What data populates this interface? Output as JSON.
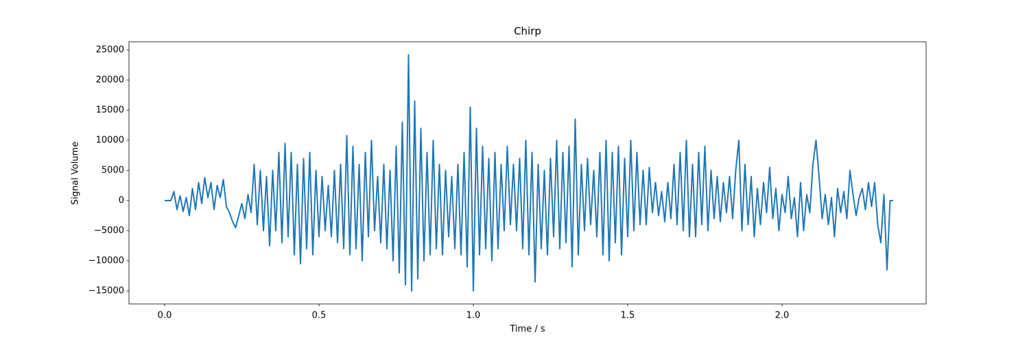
{
  "chart_data": {
    "type": "line",
    "title": "Chirp",
    "x_label": "Time / s",
    "y_label": "Signal Volume",
    "color": "#1f77b4",
    "xlim": [
      -0.1156,
      2.4667
    ],
    "ylim": [
      -17160,
      26360
    ],
    "xticks": [
      {
        "value": 0,
        "label": "0.0"
      },
      0.5,
      {
        "value": 1,
        "label": "1.0"
      },
      1.5,
      {
        "value": 2,
        "label": "2.0"
      }
    ],
    "yticks": [
      {
        "value": -15000,
        "label": "−15000"
      },
      {
        "value": -10000,
        "label": "−10000"
      },
      {
        "value": -5000,
        "label": "−5000"
      },
      0,
      5000,
      10000,
      15000,
      20000,
      25000
    ],
    "x": [
      0,
      0.01,
      0.02,
      0.03,
      0.04,
      0.05,
      0.06,
      0.07,
      0.08,
      0.09,
      0.1,
      0.11,
      0.12,
      0.13,
      0.14,
      0.15,
      0.16,
      0.17,
      0.18,
      0.19,
      0.2,
      0.21,
      0.22,
      0.23,
      0.24,
      0.25,
      0.26,
      0.27,
      0.28,
      0.29,
      0.3,
      0.31,
      0.32,
      0.33,
      0.34,
      0.35,
      0.36,
      0.37,
      0.38,
      0.39,
      0.4,
      0.41,
      0.42,
      0.43,
      0.44,
      0.45,
      0.46,
      0.47,
      0.48,
      0.49,
      0.5,
      0.51,
      0.52,
      0.53,
      0.54,
      0.55,
      0.56,
      0.57,
      0.58,
      0.59,
      0.6,
      0.61,
      0.62,
      0.63,
      0.64,
      0.65,
      0.66,
      0.67,
      0.68,
      0.69,
      0.7,
      0.71,
      0.72,
      0.73,
      0.74,
      0.75,
      0.76,
      0.77,
      0.78,
      0.79,
      0.8,
      0.81,
      0.82,
      0.83,
      0.84,
      0.85,
      0.86,
      0.87,
      0.88,
      0.89,
      0.9,
      0.91,
      0.92,
      0.93,
      0.94,
      0.95,
      0.96,
      0.97,
      0.98,
      0.99,
      1,
      1.01,
      1.02,
      1.03,
      1.04,
      1.05,
      1.06,
      1.07,
      1.08,
      1.09,
      1.1,
      1.11,
      1.12,
      1.13,
      1.14,
      1.15,
      1.16,
      1.17,
      1.18,
      1.19,
      1.2,
      1.21,
      1.22,
      1.23,
      1.24,
      1.25,
      1.26,
      1.27,
      1.28,
      1.29,
      1.3,
      1.31,
      1.32,
      1.33,
      1.34,
      1.35,
      1.36,
      1.37,
      1.38,
      1.39,
      1.4,
      1.41,
      1.42,
      1.43,
      1.44,
      1.45,
      1.46,
      1.47,
      1.48,
      1.49,
      1.5,
      1.51,
      1.52,
      1.53,
      1.54,
      1.55,
      1.56,
      1.57,
      1.58,
      1.59,
      1.6,
      1.61,
      1.62,
      1.63,
      1.64,
      1.65,
      1.66,
      1.67,
      1.68,
      1.69,
      1.7,
      1.71,
      1.72,
      1.73,
      1.74,
      1.75,
      1.76,
      1.77,
      1.78,
      1.79,
      1.8,
      1.81,
      1.82,
      1.83,
      1.84,
      1.85,
      1.86,
      1.87,
      1.88,
      1.89,
      1.9,
      1.91,
      1.92,
      1.93,
      1.94,
      1.95,
      1.96,
      1.97,
      1.98,
      1.99,
      2,
      2.01,
      2.02,
      2.03,
      2.04,
      2.05,
      2.06,
      2.07,
      2.08,
      2.09,
      2.1,
      2.11,
      2.12,
      2.13,
      2.14,
      2.15,
      2.16,
      2.17,
      2.18,
      2.19,
      2.2,
      2.21,
      2.22,
      2.23,
      2.24,
      2.25,
      2.26,
      2.27,
      2.28,
      2.29,
      2.3,
      2.31,
      2.32,
      2.33,
      2.34,
      2.35,
      2.36
    ],
    "values": [
      0,
      0,
      0,
      1500,
      -1500,
      800,
      -1800,
      500,
      -2500,
      2000,
      -1500,
      3000,
      -500,
      3800,
      500,
      3000,
      -1500,
      2500,
      500,
      3500,
      -1000,
      -2000,
      -3500,
      -4500,
      -2500,
      -500,
      -3000,
      1000,
      -2000,
      6000,
      -4000,
      5000,
      -5000,
      4000,
      -7500,
      5000,
      -5000,
      8000,
      -7000,
      9500,
      -6000,
      8000,
      -9000,
      6000,
      -10500,
      7000,
      -8000,
      8000,
      -9000,
      5000,
      -6000,
      4000,
      -5000,
      2500,
      -6000,
      5000,
      -7000,
      6000,
      -8000,
      10800,
      -9000,
      9000,
      -8000,
      6000,
      -10000,
      8000,
      -6000,
      10000,
      -5000,
      4000,
      -7000,
      6000,
      -8000,
      5000,
      -10000,
      9000,
      -12000,
      13000,
      -14000,
      24200,
      -15000,
      16500,
      -13000,
      12000,
      -10000,
      8000,
      -9000,
      10000,
      -8000,
      6000,
      -9000,
      5000,
      -6000,
      4000,
      -8000,
      6000,
      -9000,
      8000,
      -11000,
      15500,
      -15000,
      12000,
      -9000,
      9000,
      -8000,
      7000,
      -10000,
      8000,
      -8000,
      6000,
      -5000,
      9000,
      -4000,
      6000,
      -5000,
      7000,
      -8000,
      10000,
      -9000,
      8000,
      -13500,
      6000,
      -8000,
      5000,
      -9000,
      7000,
      -6000,
      10000,
      -8000,
      8000,
      -7000,
      9000,
      -11000,
      13500,
      -9000,
      6000,
      -5000,
      7000,
      -4000,
      5000,
      -6000,
      8000,
      -9000,
      10000,
      -10000,
      8000,
      -7000,
      9000,
      -9000,
      7000,
      -6000,
      10000,
      -5000,
      8000,
      -4000,
      5000,
      -4000,
      5500,
      -2000,
      3000,
      -2500,
      1500,
      -3500,
      3000,
      -3000,
      6000,
      -4000,
      8000,
      -5000,
      10000,
      -6000,
      6000,
      -6000,
      8000,
      -4000,
      9000,
      -5000,
      5000,
      -3000,
      4000,
      -3500,
      3000,
      -2000,
      4000,
      -3000,
      5000,
      10000,
      -5000,
      6000,
      -4000,
      4000,
      -6000,
      2000,
      -4000,
      3000,
      -2000,
      5500,
      -3000,
      2000,
      -5000,
      1000,
      -2000,
      4000,
      -3000,
      500,
      -6000,
      3000,
      -5000,
      1000,
      -2000,
      6000,
      10000,
      4000,
      -3000,
      1000,
      -4000,
      500,
      -6000,
      2000,
      -2000,
      1500,
      -3000,
      5000,
      1000,
      -2500,
      500,
      2000,
      -1500,
      3000,
      -1000,
      3000,
      -4000,
      -7000,
      1000,
      -11500,
      0,
      0
    ]
  }
}
